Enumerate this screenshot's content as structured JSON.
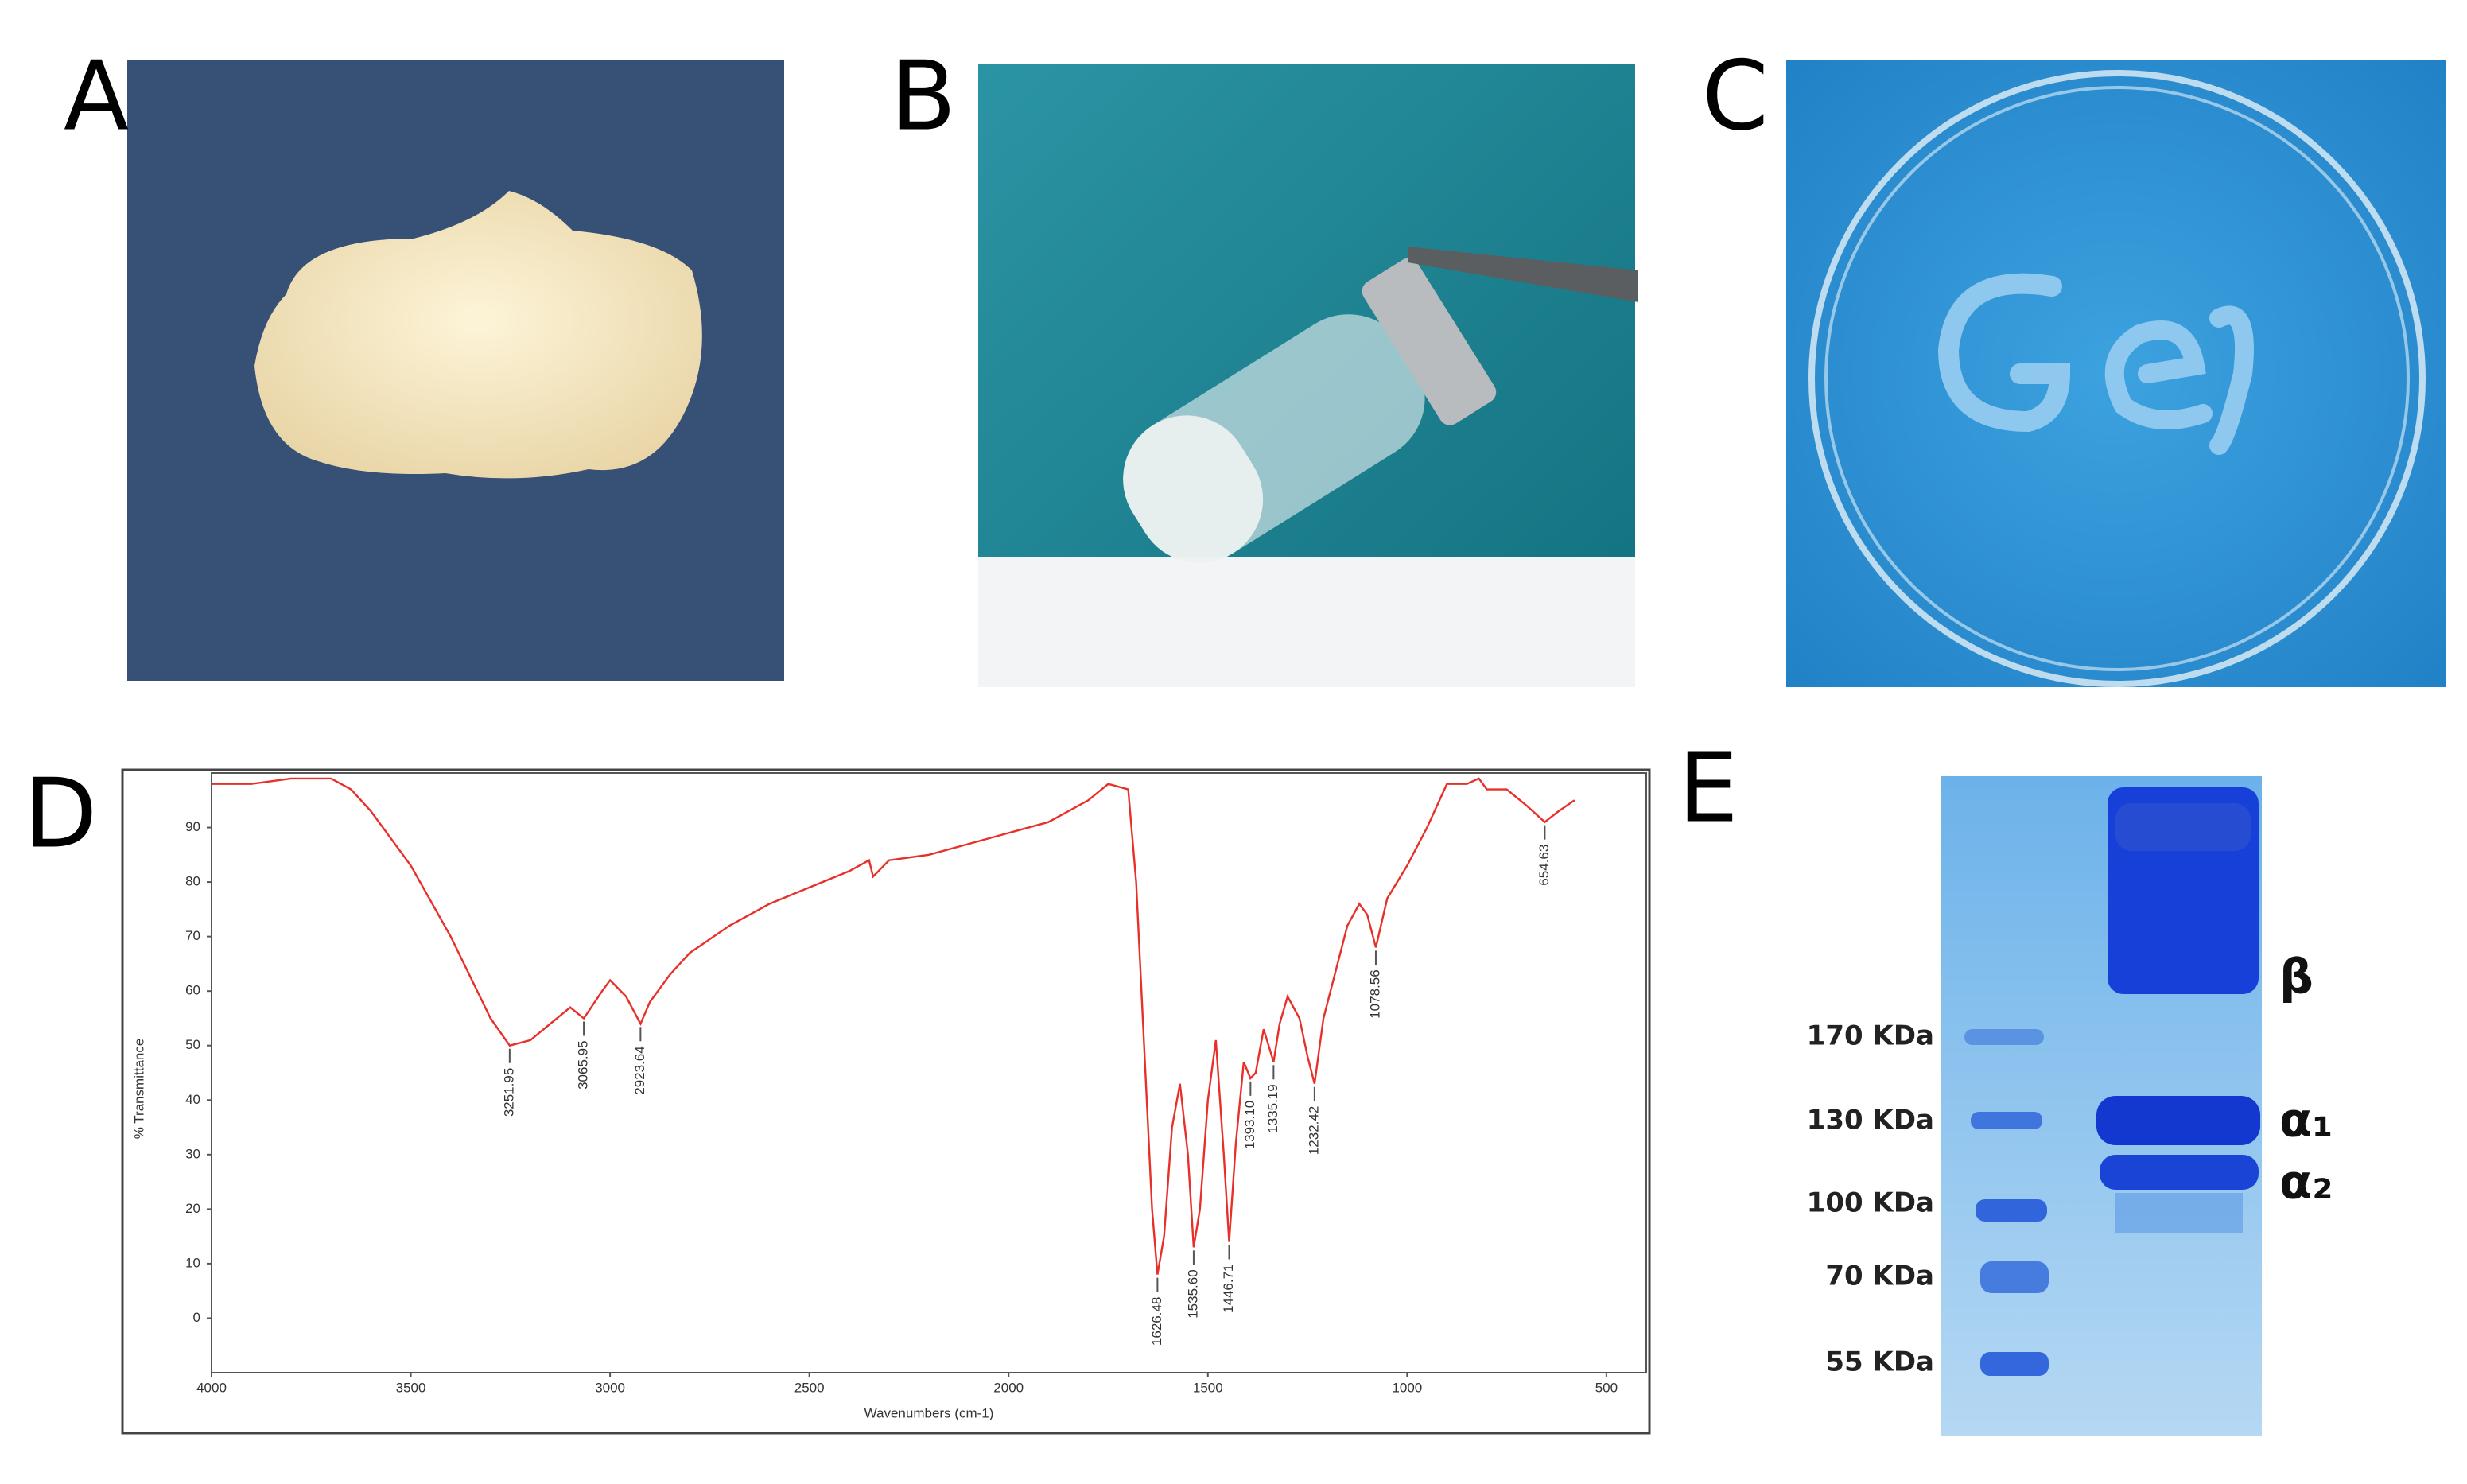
{
  "panels": [
    "A",
    "B",
    "C",
    "D",
    "E"
  ],
  "gel": {
    "markers": [
      "170 KDa",
      "130 KDa",
      "100 KDa",
      "70 KDa",
      "55 KDa"
    ],
    "bands": [
      "β",
      "α₁",
      "α₂"
    ]
  },
  "chart_data": {
    "type": "line",
    "color": "#e8302a",
    "x_label": "Wavenumbers (cm-1)",
    "y_label": "% Transmittance",
    "xlim": [
      4000,
      400
    ],
    "ylim": [
      -10,
      100
    ],
    "xticks": [
      4000,
      3500,
      3000,
      2500,
      2000,
      1500,
      1000,
      500
    ],
    "yticks": [
      0,
      10,
      20,
      30,
      40,
      50,
      60,
      70,
      80,
      90
    ],
    "x": [
      4000,
      3900,
      3800,
      3700,
      3650,
      3600,
      3500,
      3400,
      3300,
      3251.95,
      3200,
      3150,
      3100,
      3065.95,
      3020,
      3000,
      2960,
      2923.64,
      2900,
      2850,
      2800,
      2700,
      2600,
      2500,
      2400,
      2350,
      2340,
      2300,
      2200,
      2100,
      2000,
      1900,
      1800,
      1750,
      1700,
      1680,
      1660,
      1640,
      1626.48,
      1610,
      1590,
      1570,
      1550,
      1535.6,
      1520,
      1500,
      1480,
      1460,
      1446.71,
      1430,
      1410,
      1393.1,
      1380,
      1360,
      1335.19,
      1320,
      1300,
      1270,
      1250,
      1232.42,
      1210,
      1150,
      1120,
      1100,
      1078.56,
      1050,
      1000,
      950,
      900,
      850,
      820,
      800,
      750,
      700,
      654.63,
      620,
      580
    ],
    "values": [
      98,
      98,
      99,
      99,
      97,
      93,
      83,
      70,
      55,
      50,
      51,
      54,
      57,
      55,
      60,
      62,
      59,
      54,
      58,
      63,
      67,
      72,
      76,
      79,
      82,
      84,
      81,
      84,
      85,
      87,
      89,
      91,
      95,
      98,
      97,
      80,
      50,
      20,
      8,
      15,
      35,
      43,
      30,
      13,
      20,
      40,
      51,
      30,
      14,
      32,
      47,
      44,
      45,
      53,
      47,
      54,
      59,
      55,
      48,
      43,
      55,
      72,
      76,
      74,
      68,
      77,
      83,
      90,
      98,
      98,
      99,
      97,
      97,
      94,
      91,
      93,
      95
    ],
    "annotations": [
      {
        "x": 3251.95,
        "y": 50,
        "label": "3251.95"
      },
      {
        "x": 3065.95,
        "y": 55,
        "label": "3065.95"
      },
      {
        "x": 2923.64,
        "y": 54,
        "label": "2923.64"
      },
      {
        "x": 1626.48,
        "y": 8,
        "label": "1626.48"
      },
      {
        "x": 1535.6,
        "y": 13,
        "label": "1535.60"
      },
      {
        "x": 1446.71,
        "y": 14,
        "label": "1446.71"
      },
      {
        "x": 1393.1,
        "y": 44,
        "label": "1393.10"
      },
      {
        "x": 1335.19,
        "y": 47,
        "label": "1335.19"
      },
      {
        "x": 1232.42,
        "y": 43,
        "label": "1232.42"
      },
      {
        "x": 1078.56,
        "y": 68,
        "label": "1078.56"
      },
      {
        "x": 654.63,
        "y": 91,
        "label": "654.63"
      }
    ]
  }
}
